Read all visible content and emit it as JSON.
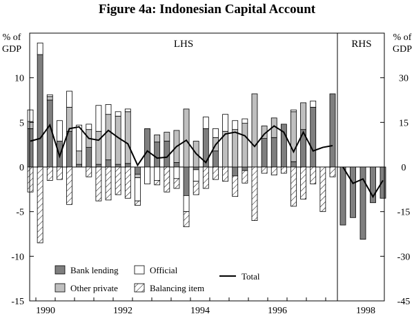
{
  "title": "Figure 4a: Indonesian Capital Account",
  "chart_data": {
    "type": "bar",
    "stacked": true,
    "title": "Figure 4a: Indonesian Capital Account",
    "left_axis": {
      "label": [
        "% of",
        "GDP"
      ],
      "panel_label": "LHS",
      "ylim": [
        -15,
        15
      ],
      "ticks": [
        10,
        5,
        0,
        -5,
        -10,
        -15
      ]
    },
    "right_axis": {
      "label": [
        "% of",
        "GDP"
      ],
      "panel_label": "RHS",
      "ylim": [
        -45,
        45
      ],
      "ticks": [
        30,
        15,
        0,
        -15,
        -30,
        -45
      ]
    },
    "x_ticks": [
      "1990",
      "1992",
      "1994",
      "1996",
      "1998"
    ],
    "legend": {
      "placement": "bottom-left",
      "items": [
        {
          "name": "Bank lending",
          "key": "bank"
        },
        {
          "name": "Official",
          "key": "official"
        },
        {
          "name": "Other private",
          "key": "other"
        },
        {
          "name": "Balancing item",
          "key": "balancing"
        },
        {
          "name": "Total",
          "key": "total"
        }
      ]
    },
    "colors": {
      "bank": "#7f7f7f",
      "other": "#bfbfbf",
      "official": "#ffffff",
      "balancing": "#ffffff",
      "outline": "#000000",
      "total": "#000000"
    },
    "lhs_series": {
      "bank": [
        4.3,
        12.6,
        7.5,
        2.9,
        4.0,
        0.3,
        2.2,
        0.3,
        0.8,
        0.3,
        0.4,
        -0.8,
        4.3,
        2.8,
        2.9,
        0.5,
        -3.2,
        -0.3,
        4.3,
        1.8,
        0,
        -1.0,
        -0.4,
        0,
        3.2,
        3.3,
        4.8,
        0.6,
        4.2,
        6.7,
        0,
        8.2
      ],
      "other": [
        0.8,
        0,
        0.4,
        0,
        2.7,
        1.5,
        2.0,
        3.7,
        5.1,
        5.4,
        5.8,
        -0.4,
        0,
        0.8,
        1.0,
        3.6,
        6.5,
        2.9,
        0,
        1.5,
        4.0,
        4.2,
        4.9,
        8.2,
        1.4,
        2.2,
        0,
        5.6,
        3.0,
        0,
        0,
        0
      ],
      "official": [
        1.3,
        1.3,
        0.2,
        2.3,
        1.8,
        2.9,
        0.6,
        2.9,
        1.1,
        0.5,
        0.3,
        -2.6,
        -1.9,
        -1.5,
        0,
        -1.3,
        -1.8,
        -1.3,
        1.3,
        1.0,
        1.9,
        1.0,
        0.5,
        0,
        0,
        0,
        0,
        0.2,
        0,
        0.7,
        0,
        0
      ],
      "balancing": [
        -2.8,
        -8.5,
        -1.5,
        -1.4,
        -4.2,
        0,
        -1.1,
        -3.8,
        -3.7,
        -3.1,
        -3.5,
        -0.5,
        0,
        -0.5,
        -2.8,
        -1.1,
        -1.7,
        -1.5,
        -2.4,
        -1.4,
        -1.6,
        -2.3,
        -1.4,
        -6.0,
        -0.7,
        -0.9,
        -0.7,
        -4.4,
        -3.6,
        -1.9,
        -5.0,
        -1.1
      ]
    },
    "rhs_series": {
      "bank": [
        -19.5,
        -17.0,
        -24.3,
        -12.0,
        -10.5
      ],
      "other": [
        0,
        0,
        0,
        0,
        0
      ],
      "official": [
        0,
        0,
        0,
        0,
        0
      ],
      "balancing": [
        0,
        0,
        0,
        0,
        0
      ]
    },
    "lhs_total": [
      2.9,
      3.2,
      4.7,
      1.2,
      4.3,
      4.5,
      3.2,
      3.0,
      4.1,
      3.3,
      2.6,
      0.2,
      1.8,
      1.0,
      1.1,
      2.3,
      3.0,
      1.5,
      0.5,
      2.5,
      3.7,
      3.9,
      3.5,
      2.3,
      3.7,
      4.6,
      3.9,
      1.7,
      3.9,
      1.8,
      2.2,
      2.4
    ],
    "rhs_total": [
      0,
      -5.5,
      -4.0,
      -10.0,
      -4.5
    ]
  }
}
